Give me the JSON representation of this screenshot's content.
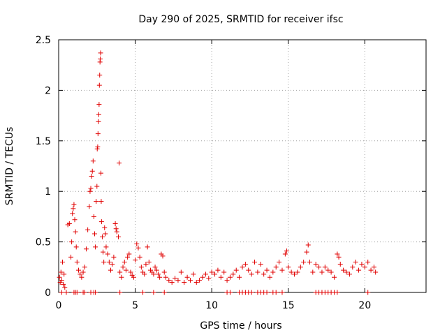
{
  "chart_data": {
    "type": "scatter",
    "title": "Day 290 of 2025, SRMTID for receiver ifsc",
    "xlabel": "GPS time / hours",
    "ylabel": "SRMTID / TECUs",
    "xlim": [
      0,
      24
    ],
    "ylim": [
      0,
      2.5
    ],
    "x_ticks": [
      0,
      5,
      10,
      15,
      20
    ],
    "x_tick_labels": [
      "0",
      "5",
      "10",
      "15",
      "20"
    ],
    "y_ticks": [
      0,
      0.5,
      1,
      1.5,
      2,
      2.5
    ],
    "y_tick_labels": [
      "0",
      "0.5",
      "1",
      "1.5",
      "2",
      "2.5"
    ],
    "grid": true,
    "marker": "+",
    "color": "#e00000",
    "series": [
      {
        "name": "SRMTID",
        "points": [
          [
            0.05,
            0.15
          ],
          [
            0.1,
            0.1
          ],
          [
            0.15,
            0.2
          ],
          [
            0.2,
            0.12
          ],
          [
            0.25,
            0.3
          ],
          [
            0.3,
            0.08
          ],
          [
            0.35,
            0.18
          ],
          [
            0.4,
            0.05
          ],
          [
            0.6,
            0.67
          ],
          [
            0.7,
            0.68
          ],
          [
            0.8,
            0.35
          ],
          [
            0.85,
            0.5
          ],
          [
            0.9,
            0.78
          ],
          [
            0.95,
            0.83
          ],
          [
            1.0,
            0.87
          ],
          [
            1.05,
            0.72
          ],
          [
            1.1,
            0.6
          ],
          [
            1.15,
            0.45
          ],
          [
            1.2,
            0.3
          ],
          [
            1.3,
            0.22
          ],
          [
            1.4,
            0.18
          ],
          [
            1.5,
            0.15
          ],
          [
            1.6,
            0.2
          ],
          [
            1.7,
            0.25
          ],
          [
            1.8,
            0.43
          ],
          [
            1.9,
            0.62
          ],
          [
            2.0,
            0.85
          ],
          [
            2.05,
            1.0
          ],
          [
            2.1,
            1.03
          ],
          [
            2.15,
            1.15
          ],
          [
            2.2,
            1.2
          ],
          [
            2.25,
            1.3
          ],
          [
            2.3,
            0.75
          ],
          [
            2.35,
            0.58
          ],
          [
            2.4,
            0.45
          ],
          [
            2.45,
            0.9
          ],
          [
            2.5,
            1.05
          ],
          [
            2.52,
            1.42
          ],
          [
            2.55,
            1.44
          ],
          [
            2.57,
            1.57
          ],
          [
            2.6,
            1.69
          ],
          [
            2.62,
            1.76
          ],
          [
            2.64,
            1.86
          ],
          [
            2.66,
            2.05
          ],
          [
            2.68,
            2.15
          ],
          [
            2.7,
            2.28
          ],
          [
            2.72,
            2.31
          ],
          [
            2.74,
            2.37
          ],
          [
            2.76,
            1.18
          ],
          [
            2.78,
            0.9
          ],
          [
            2.8,
            0.7
          ],
          [
            2.85,
            0.55
          ],
          [
            2.9,
            0.4
          ],
          [
            2.95,
            0.3
          ],
          [
            3.0,
            0.64
          ],
          [
            3.05,
            0.58
          ],
          [
            3.1,
            0.45
          ],
          [
            3.2,
            0.38
          ],
          [
            3.3,
            0.3
          ],
          [
            3.4,
            0.22
          ],
          [
            3.5,
            0.28
          ],
          [
            3.6,
            0.35
          ],
          [
            3.7,
            0.68
          ],
          [
            3.75,
            0.63
          ],
          [
            3.8,
            0.6
          ],
          [
            3.9,
            0.55
          ],
          [
            3.95,
            1.28
          ],
          [
            4.0,
            0.2
          ],
          [
            4.1,
            0.15
          ],
          [
            4.2,
            0.25
          ],
          [
            4.3,
            0.3
          ],
          [
            4.4,
            0.22
          ],
          [
            4.5,
            0.35
          ],
          [
            4.6,
            0.38
          ],
          [
            4.7,
            0.2
          ],
          [
            4.8,
            0.17
          ],
          [
            4.9,
            0.15
          ],
          [
            5.0,
            0.32
          ],
          [
            5.1,
            0.48
          ],
          [
            5.2,
            0.44
          ],
          [
            5.3,
            0.35
          ],
          [
            5.4,
            0.25
          ],
          [
            5.5,
            0.2
          ],
          [
            5.6,
            0.18
          ],
          [
            5.7,
            0.28
          ],
          [
            5.8,
            0.45
          ],
          [
            5.9,
            0.3
          ],
          [
            6.0,
            0.22
          ],
          [
            6.1,
            0.2
          ],
          [
            6.2,
            0.18
          ],
          [
            6.3,
            0.25
          ],
          [
            6.4,
            0.22
          ],
          [
            6.5,
            0.18
          ],
          [
            6.6,
            0.15
          ],
          [
            6.7,
            0.38
          ],
          [
            6.8,
            0.36
          ],
          [
            6.9,
            0.2
          ],
          [
            7.0,
            0.15
          ],
          [
            7.2,
            0.12
          ],
          [
            7.4,
            0.1
          ],
          [
            7.6,
            0.14
          ],
          [
            7.8,
            0.12
          ],
          [
            8.0,
            0.2
          ],
          [
            8.2,
            0.1
          ],
          [
            8.4,
            0.15
          ],
          [
            8.6,
            0.12
          ],
          [
            8.8,
            0.18
          ],
          [
            9.0,
            0.1
          ],
          [
            9.2,
            0.12
          ],
          [
            9.4,
            0.15
          ],
          [
            9.6,
            0.18
          ],
          [
            9.8,
            0.14
          ],
          [
            10.0,
            0.2
          ],
          [
            10.2,
            0.18
          ],
          [
            10.4,
            0.22
          ],
          [
            10.6,
            0.15
          ],
          [
            10.8,
            0.2
          ],
          [
            11.0,
            0.12
          ],
          [
            11.2,
            0.15
          ],
          [
            11.4,
            0.18
          ],
          [
            11.6,
            0.22
          ],
          [
            11.8,
            0.15
          ],
          [
            12.0,
            0.25
          ],
          [
            12.2,
            0.28
          ],
          [
            12.4,
            0.22
          ],
          [
            12.6,
            0.18
          ],
          [
            12.8,
            0.3
          ],
          [
            13.0,
            0.2
          ],
          [
            13.2,
            0.28
          ],
          [
            13.4,
            0.18
          ],
          [
            13.6,
            0.22
          ],
          [
            13.8,
            0.15
          ],
          [
            14.0,
            0.2
          ],
          [
            14.2,
            0.25
          ],
          [
            14.4,
            0.3
          ],
          [
            14.6,
            0.22
          ],
          [
            14.8,
            0.38
          ],
          [
            14.9,
            0.41
          ],
          [
            15.0,
            0.25
          ],
          [
            15.2,
            0.2
          ],
          [
            15.4,
            0.18
          ],
          [
            15.6,
            0.2
          ],
          [
            15.8,
            0.25
          ],
          [
            16.0,
            0.3
          ],
          [
            16.2,
            0.4
          ],
          [
            16.3,
            0.47
          ],
          [
            16.4,
            0.3
          ],
          [
            16.6,
            0.2
          ],
          [
            16.8,
            0.28
          ],
          [
            17.0,
            0.25
          ],
          [
            17.2,
            0.2
          ],
          [
            17.4,
            0.25
          ],
          [
            17.6,
            0.22
          ],
          [
            17.8,
            0.2
          ],
          [
            18.0,
            0.15
          ],
          [
            18.2,
            0.38
          ],
          [
            18.3,
            0.35
          ],
          [
            18.4,
            0.28
          ],
          [
            18.6,
            0.22
          ],
          [
            18.8,
            0.2
          ],
          [
            19.0,
            0.18
          ],
          [
            19.2,
            0.25
          ],
          [
            19.4,
            0.3
          ],
          [
            19.6,
            0.22
          ],
          [
            19.8,
            0.28
          ],
          [
            20.0,
            0.25
          ],
          [
            20.2,
            0.3
          ],
          [
            20.4,
            0.22
          ],
          [
            20.6,
            0.25
          ],
          [
            20.7,
            0.2
          ],
          [
            0.2,
            0
          ],
          [
            0.5,
            0
          ],
          [
            1.0,
            0
          ],
          [
            1.1,
            0
          ],
          [
            1.2,
            0
          ],
          [
            1.6,
            0
          ],
          [
            1.7,
            0
          ],
          [
            2.1,
            0
          ],
          [
            2.3,
            0
          ],
          [
            2.4,
            0
          ],
          [
            4.0,
            0
          ],
          [
            5.5,
            0
          ],
          [
            6.2,
            0
          ],
          [
            6.9,
            0
          ],
          [
            11.0,
            0
          ],
          [
            11.2,
            0
          ],
          [
            11.8,
            0
          ],
          [
            12.0,
            0
          ],
          [
            12.2,
            0
          ],
          [
            12.4,
            0
          ],
          [
            12.6,
            0
          ],
          [
            13.0,
            0
          ],
          [
            13.2,
            0
          ],
          [
            13.4,
            0
          ],
          [
            13.6,
            0
          ],
          [
            14.0,
            0
          ],
          [
            14.2,
            0
          ],
          [
            14.6,
            0
          ],
          [
            16.8,
            0
          ],
          [
            17.0,
            0
          ],
          [
            17.2,
            0
          ],
          [
            17.4,
            0
          ],
          [
            17.6,
            0
          ],
          [
            17.8,
            0
          ],
          [
            18.0,
            0
          ],
          [
            18.2,
            0
          ],
          [
            20.2,
            0
          ]
        ]
      }
    ]
  }
}
